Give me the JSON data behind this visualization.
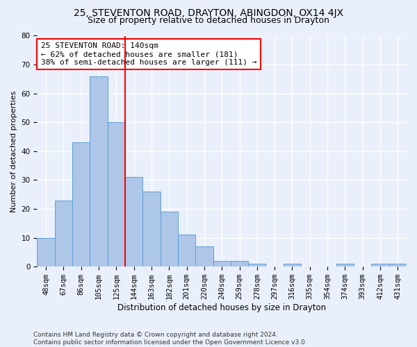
{
  "title": "25, STEVENTON ROAD, DRAYTON, ABINGDON, OX14 4JX",
  "subtitle": "Size of property relative to detached houses in Drayton",
  "xlabel": "Distribution of detached houses by size in Drayton",
  "ylabel": "Number of detached properties",
  "bar_labels": [
    "48sqm",
    "67sqm",
    "86sqm",
    "105sqm",
    "125sqm",
    "144sqm",
    "163sqm",
    "182sqm",
    "201sqm",
    "220sqm",
    "240sqm",
    "259sqm",
    "278sqm",
    "297sqm",
    "316sqm",
    "335sqm",
    "354sqm",
    "374sqm",
    "393sqm",
    "412sqm",
    "431sqm"
  ],
  "bar_values": [
    10,
    23,
    43,
    66,
    50,
    31,
    26,
    19,
    11,
    7,
    2,
    2,
    1,
    0,
    1,
    0,
    0,
    1,
    0,
    1,
    1
  ],
  "bar_color": "#aec6e8",
  "bar_edge_color": "#5a9fd4",
  "vline_x": 4.5,
  "vline_color": "red",
  "annotation_text": "25 STEVENTON ROAD: 140sqm\n← 62% of detached houses are smaller (181)\n38% of semi-detached houses are larger (111) →",
  "annotation_box_color": "white",
  "annotation_box_edge_color": "red",
  "ylim": [
    0,
    80
  ],
  "yticks": [
    0,
    10,
    20,
    30,
    40,
    50,
    60,
    70,
    80
  ],
  "bg_color": "#eaf0fb",
  "plot_bg_color": "#eaf0fb",
  "grid_color": "white",
  "footer": "Contains HM Land Registry data © Crown copyright and database right 2024.\nContains public sector information licensed under the Open Government Licence v3.0.",
  "title_fontsize": 10,
  "subtitle_fontsize": 9,
  "xlabel_fontsize": 8.5,
  "ylabel_fontsize": 8,
  "tick_fontsize": 7.5,
  "annotation_fontsize": 8,
  "footer_fontsize": 6.5
}
